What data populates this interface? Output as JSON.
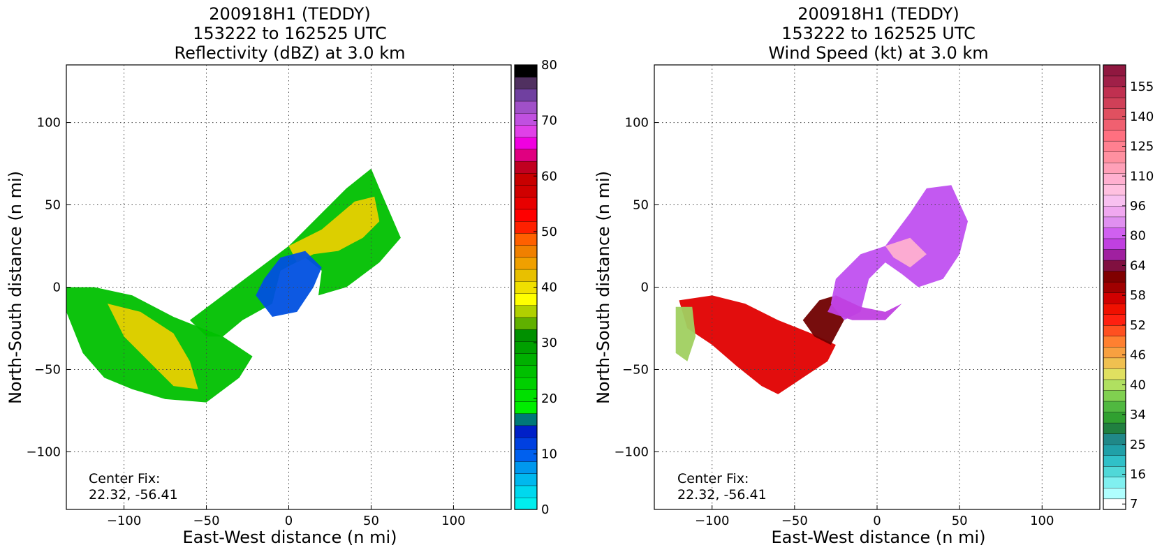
{
  "chart_data": [
    {
      "type": "heatmap",
      "title_lines": [
        "200918H1 (TEDDY)",
        "153222 to 162525 UTC",
        "Reflectivity (dBZ) at 3.0 km"
      ],
      "xlabel": "East-West distance (n mi)",
      "ylabel": "North-South distance (n mi)",
      "xlim": [
        -135,
        135
      ],
      "ylim": [
        -135,
        135
      ],
      "xticks": [
        -100,
        -50,
        0,
        50,
        100
      ],
      "yticks": [
        -100,
        -50,
        0,
        50,
        100
      ],
      "grid": "dotted",
      "annotation_lines": [
        "Center Fix:",
        "22.32, -56.41"
      ],
      "colorbar": {
        "ticks": [
          "0",
          "10",
          "20",
          "30",
          "40",
          "50",
          "60",
          "70",
          "80"
        ],
        "colors": [
          "#00eeee",
          "#00d8ee",
          "#00b8ee",
          "#0098ee",
          "#0060ee",
          "#0040e0",
          "#0020c8",
          "#007878",
          "#00ee00",
          "#00e000",
          "#00d000",
          "#00c000",
          "#00b000",
          "#00a000",
          "#009000",
          "#60b000",
          "#b0d000",
          "#ffff00",
          "#f0e000",
          "#e8c000",
          "#f0a000",
          "#f08000",
          "#ff6000",
          "#ff2000",
          "#ff0000",
          "#e80000",
          "#d00000",
          "#c80000",
          "#c00020",
          "#e00080",
          "#f000e0",
          "#e040e8",
          "#c050e0",
          "#a050c8",
          "#7040a0",
          "#503060",
          "#000000"
        ]
      },
      "echo_regions": [
        {
          "name": "southwest-band",
          "color": "#00c000",
          "polygon": [
            [
              -135,
              0
            ],
            [
              -118,
              0
            ],
            [
              -95,
              -5
            ],
            [
              -70,
              -18
            ],
            [
              -40,
              -30
            ],
            [
              -22,
              -42
            ],
            [
              -30,
              -55
            ],
            [
              -50,
              -70
            ],
            [
              -75,
              -68
            ],
            [
              -95,
              -62
            ],
            [
              -112,
              -55
            ],
            [
              -125,
              -40
            ],
            [
              -135,
              -15
            ]
          ]
        },
        {
          "name": "southwest-core",
          "color": "#e8d000",
          "polygon": [
            [
              -110,
              -10
            ],
            [
              -90,
              -15
            ],
            [
              -70,
              -28
            ],
            [
              -60,
              -45
            ],
            [
              -55,
              -62
            ],
            [
              -70,
              -60
            ],
            [
              -85,
              -45
            ],
            [
              -100,
              -30
            ]
          ]
        },
        {
          "name": "northeast-band",
          "color": "#00c000",
          "polygon": [
            [
              -60,
              -20
            ],
            [
              -40,
              -5
            ],
            [
              -20,
              10
            ],
            [
              0,
              25
            ],
            [
              20,
              45
            ],
            [
              35,
              60
            ],
            [
              50,
              72
            ],
            [
              55,
              60
            ],
            [
              68,
              30
            ],
            [
              55,
              15
            ],
            [
              35,
              0
            ],
            [
              18,
              -5
            ],
            [
              20,
              10
            ],
            [
              10,
              18
            ],
            [
              -5,
              10
            ],
            [
              -10,
              -10
            ],
            [
              -28,
              -20
            ],
            [
              -40,
              -30
            ],
            [
              -50,
              -30
            ]
          ]
        },
        {
          "name": "northeast-core",
          "color": "#e8d000",
          "polygon": [
            [
              0,
              25
            ],
            [
              20,
              35
            ],
            [
              40,
              52
            ],
            [
              52,
              55
            ],
            [
              55,
              40
            ],
            [
              45,
              30
            ],
            [
              30,
              22
            ],
            [
              15,
              20
            ],
            [
              5,
              15
            ]
          ]
        },
        {
          "name": "eye-ring-blue",
          "color": "#0050e0",
          "polygon": [
            [
              -15,
              5
            ],
            [
              -5,
              18
            ],
            [
              10,
              22
            ],
            [
              20,
              12
            ],
            [
              15,
              0
            ],
            [
              5,
              -15
            ],
            [
              -10,
              -18
            ],
            [
              -20,
              -5
            ]
          ]
        }
      ]
    },
    {
      "type": "heatmap",
      "title_lines": [
        "200918H1 (TEDDY)",
        "153222 to 162525 UTC",
        "Wind Speed (kt) at 3.0 km"
      ],
      "xlabel": "East-West distance (n mi)",
      "ylabel": "North-South distance (n mi)",
      "xlim": [
        -135,
        135
      ],
      "ylim": [
        -135,
        135
      ],
      "xticks": [
        -100,
        -50,
        0,
        50,
        100
      ],
      "yticks": [
        -100,
        -50,
        0,
        50,
        100
      ],
      "grid": "dotted",
      "annotation_lines": [
        "Center Fix:",
        "22.32, -56.41"
      ],
      "colorbar": {
        "ticks": [
          "7",
          "16",
          "25",
          "34",
          "40",
          "46",
          "52",
          "58",
          "64",
          "80",
          "96",
          "110",
          "125",
          "140",
          "155"
        ],
        "colors": [
          "#ffffff",
          "#b0ffff",
          "#80f0f0",
          "#50d8d8",
          "#30c0c8",
          "#20a0a8",
          "#208888",
          "#208040",
          "#30a030",
          "#50b840",
          "#80d050",
          "#b0e060",
          "#e0e060",
          "#f0c050",
          "#f8a040",
          "#ff8030",
          "#ff5020",
          "#ff2010",
          "#f01000",
          "#d00000",
          "#a00000",
          "#800000",
          "#801040",
          "#a020a0",
          "#c040e0",
          "#d060f0",
          "#e090f0",
          "#f0a8f0",
          "#f8c0f0",
          "#ffc0e0",
          "#ffb0d0",
          "#ffa0b8",
          "#ff90a0",
          "#ff8090",
          "#ff7080",
          "#f06070",
          "#e05060",
          "#d04058",
          "#c03050",
          "#a02048",
          "#901840"
        ]
      },
      "wind_regions": [
        {
          "name": "southwest-red",
          "color": "#e00000",
          "polygon": [
            [
              -120,
              -8
            ],
            [
              -100,
              -5
            ],
            [
              -80,
              -10
            ],
            [
              -60,
              -20
            ],
            [
              -40,
              -28
            ],
            [
              -25,
              -35
            ],
            [
              -30,
              -45
            ],
            [
              -45,
              -55
            ],
            [
              -60,
              -65
            ],
            [
              -70,
              -60
            ],
            [
              -85,
              -48
            ],
            [
              -100,
              -35
            ],
            [
              -115,
              -25
            ]
          ]
        },
        {
          "name": "southwest-green",
          "color": "#a0d060",
          "polygon": [
            [
              -122,
              -12
            ],
            [
              -112,
              -12
            ],
            [
              -110,
              -30
            ],
            [
              -115,
              -45
            ],
            [
              -122,
              -40
            ]
          ]
        },
        {
          "name": "dark-red-transition",
          "color": "#700000",
          "polygon": [
            [
              -45,
              -20
            ],
            [
              -35,
              -8
            ],
            [
              -25,
              -5
            ],
            [
              -20,
              -20
            ],
            [
              -28,
              -35
            ],
            [
              -38,
              -30
            ]
          ]
        },
        {
          "name": "northeast-purple",
          "color": "#c050f0",
          "polygon": [
            [
              -28,
              -10
            ],
            [
              -25,
              5
            ],
            [
              -10,
              20
            ],
            [
              5,
              25
            ],
            [
              20,
              45
            ],
            [
              30,
              60
            ],
            [
              45,
              62
            ],
            [
              55,
              40
            ],
            [
              50,
              20
            ],
            [
              40,
              5
            ],
            [
              25,
              0
            ],
            [
              15,
              8
            ],
            [
              5,
              15
            ],
            [
              -5,
              5
            ],
            [
              -10,
              -15
            ],
            [
              -20,
              -20
            ]
          ]
        },
        {
          "name": "northeast-pink",
          "color": "#ffb0d0",
          "polygon": [
            [
              5,
              25
            ],
            [
              20,
              30
            ],
            [
              30,
              20
            ],
            [
              20,
              12
            ],
            [
              10,
              18
            ]
          ]
        },
        {
          "name": "eye-ring-purple",
          "color": "#c040e0",
          "polygon": [
            [
              -30,
              -15
            ],
            [
              -15,
              -20
            ],
            [
              5,
              -20
            ],
            [
              15,
              -10
            ],
            [
              5,
              -15
            ],
            [
              -10,
              -12
            ],
            [
              -25,
              -5
            ]
          ]
        }
      ]
    }
  ]
}
